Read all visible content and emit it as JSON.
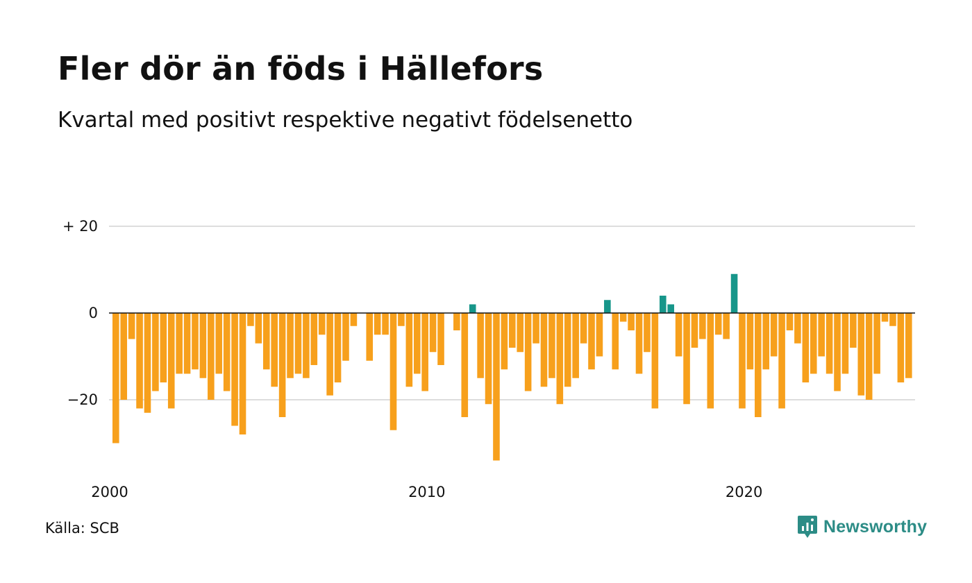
{
  "header": {
    "title": "Fler dör än föds i Hällefors",
    "subtitle": "Kvartal med positivt respektive negativt födelsenetto"
  },
  "footer": {
    "source": "Källa: SCB",
    "brand": "Newsworthy",
    "brand_icon": "newsworthy-logo-icon"
  },
  "colors": {
    "positive": "#17968a",
    "negative": "#f7a01c",
    "grid": "#dddddd",
    "zero_line": "#111111",
    "brand": "#2c8c86"
  },
  "chart_data": {
    "type": "bar",
    "title": "Fler dör än föds i Hällefors",
    "subtitle": "Kvartal med positivt respektive negativt födelsenetto",
    "xlabel": "",
    "ylabel": "",
    "ylim": [
      -36,
      22
    ],
    "y_ticks": [
      {
        "value": 20,
        "label": "+ 20"
      },
      {
        "value": 0,
        "label": "0"
      },
      {
        "value": -20,
        "label": "−20"
      }
    ],
    "x_ticks": [
      {
        "value": 2000,
        "label": "2000"
      },
      {
        "value": 2010,
        "label": "2010"
      },
      {
        "value": 2020,
        "label": "2020"
      }
    ],
    "grid": true,
    "legend": "none",
    "series": [
      {
        "start_year": 2000,
        "frequency": "quarterly",
        "values": [
          -30,
          -20,
          -6,
          -22,
          -23,
          -18,
          -16,
          -22,
          -14,
          -14,
          -13,
          -15,
          -20,
          -14,
          -18,
          -26,
          -28,
          -3,
          -7,
          -13,
          -17,
          -24,
          -15,
          -14,
          -15,
          -12,
          -5,
          -19,
          -16,
          -11,
          -3,
          0,
          -11,
          -5,
          -5,
          -27,
          -3,
          -17,
          -14,
          -18,
          -9,
          -12,
          0,
          -4,
          -24,
          2,
          -15,
          -21,
          -34,
          -13,
          -8,
          -9,
          -18,
          -7,
          -17,
          -15,
          -21,
          -17,
          -15,
          -7,
          -13,
          -10,
          3,
          -13,
          -2,
          -4,
          -14,
          -9,
          -22,
          4,
          2,
          -10,
          -21,
          -8,
          -6,
          -22,
          -5,
          -6,
          9,
          -22,
          -13,
          -24,
          -13,
          -10,
          -22,
          -4,
          -7,
          -16,
          -14,
          -10,
          -14,
          -18,
          -14,
          -8,
          -19,
          -20,
          -14,
          -2,
          -3,
          -16,
          -15
        ]
      }
    ]
  }
}
